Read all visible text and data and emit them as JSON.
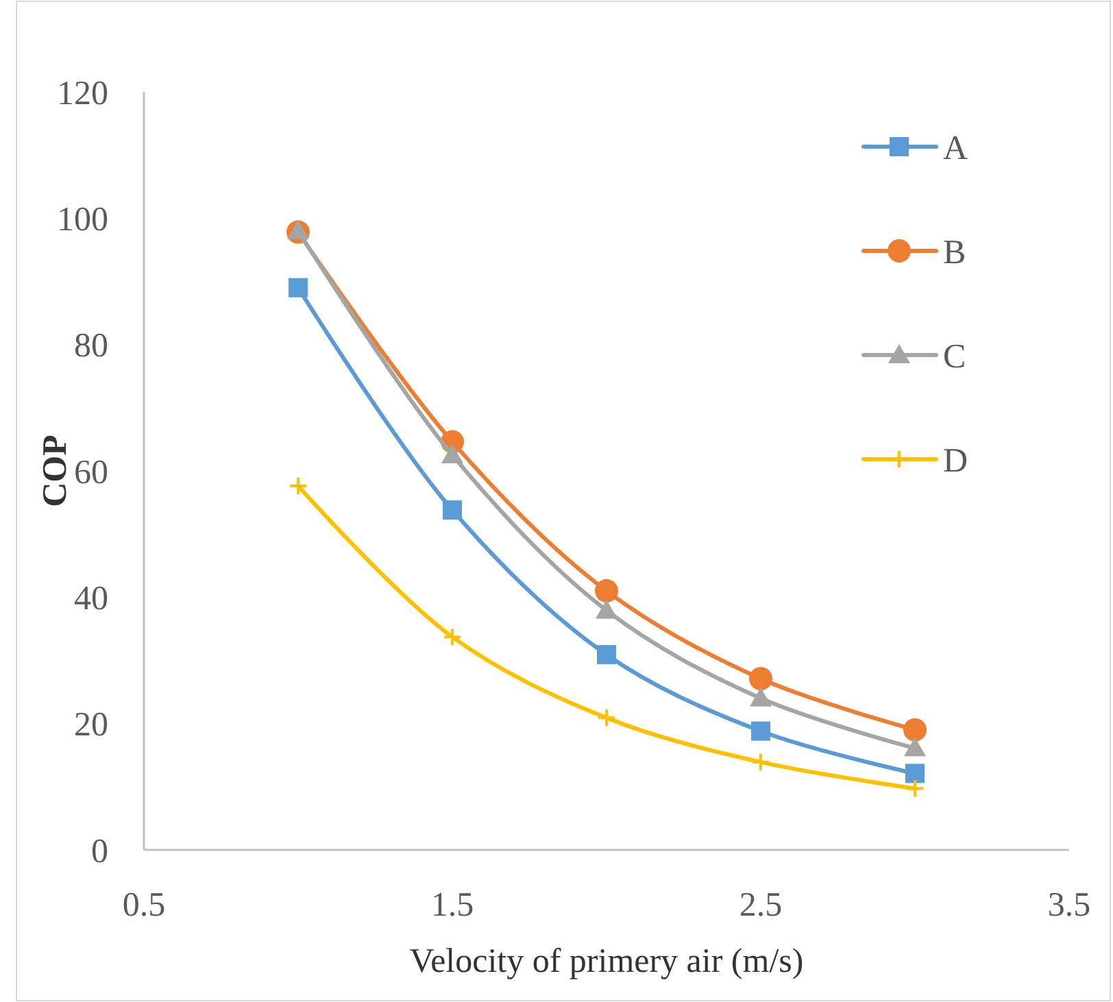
{
  "chart_data": {
    "type": "line",
    "xlabel": "Velocity of primery air (m/s)",
    "ylabel": "COP",
    "x": [
      1,
      1.5,
      2,
      2.5,
      3
    ],
    "xlim": [
      0.5,
      3.5
    ],
    "xticks": [
      0.5,
      1.5,
      2.5,
      3.5
    ],
    "ylim": [
      0,
      120
    ],
    "yticks": [
      0,
      20,
      40,
      60,
      80,
      100,
      120
    ],
    "grid": false,
    "legend": "top right",
    "series": [
      {
        "name": "A",
        "color": "#5b9bd5",
        "marker": "square",
        "values": [
          89,
          53.8,
          30.9,
          18.8,
          12.1
        ]
      },
      {
        "name": "B",
        "color": "#ed7d31",
        "marker": "circle",
        "values": [
          97.8,
          64.6,
          41,
          27.1,
          19
        ]
      },
      {
        "name": "C",
        "color": "#a5a5a5",
        "marker": "triangle",
        "values": [
          98,
          62.5,
          37.9,
          24,
          16.1
        ]
      },
      {
        "name": "D",
        "color": "#ffc000",
        "marker": "cross",
        "values": [
          57.6,
          33.7,
          20.9,
          13.9,
          9.7
        ]
      }
    ]
  }
}
